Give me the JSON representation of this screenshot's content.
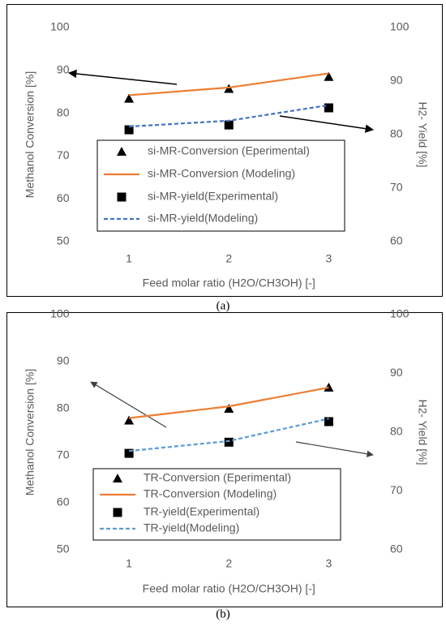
{
  "chart_data": [
    {
      "type": "line",
      "caption": "(a)",
      "x_label": "Feed molar ratio (H2O/CH3OH) [-]",
      "y_label": "Methanol Conversion [%]",
      "y2_label": "H2- Yield [%]",
      "x": [
        1,
        2,
        3
      ],
      "xlim": [
        0.5,
        3.5
      ],
      "xticks": [
        1,
        2,
        3
      ],
      "ylim": [
        50,
        100
      ],
      "yticks": [
        50,
        60,
        70,
        80,
        90,
        100
      ],
      "y2lim": [
        60,
        100
      ],
      "y2ticks": [
        60,
        70,
        80,
        90,
        100
      ],
      "grid": false,
      "series": [
        {
          "name": "si-MR-Conversion (Eperimental)",
          "color": "#000000",
          "marker": "triangle",
          "line": "none",
          "values": [
            83.4,
            85.7,
            88.5
          ]
        },
        {
          "name": "si-MR-Conversion (Modeling)",
          "color": "#ed7d31",
          "marker": "none",
          "line": "solid",
          "values": [
            84.2,
            86.0,
            89.3
          ]
        },
        {
          "name": "si-MR-yield(Experimental)",
          "color": "#000000",
          "marker": "square",
          "line": "none",
          "axis": "y2",
          "values": [
            80.9,
            81.8,
            85.0
          ]
        },
        {
          "name": "si-MR-yield(Modeling)",
          "color": "#4472c4",
          "marker": "none",
          "line": "dashed",
          "axis": "y2",
          "values": [
            81.5,
            82.6,
            85.5
          ]
        }
      ]
    },
    {
      "type": "line",
      "caption": "(b)",
      "x_label": "Feed molar ratio (H2O/CH3OH) [-]",
      "y_label": "Methanol Conversion [%]",
      "y2_label": "H2- Yield [%]",
      "x": [
        1,
        2,
        3
      ],
      "xlim": [
        0.5,
        3.5
      ],
      "xticks": [
        1,
        2,
        3
      ],
      "ylim": [
        50,
        100
      ],
      "yticks": [
        50,
        60,
        70,
        80,
        90,
        100
      ],
      "y2lim": [
        60,
        100
      ],
      "y2ticks": [
        60,
        70,
        80,
        90,
        100
      ],
      "grid": false,
      "series": [
        {
          "name": "TR-Conversion (Eperimental)",
          "color": "#000000",
          "marker": "triangle",
          "line": "none",
          "values": [
            77.5,
            80.0,
            84.5
          ]
        },
        {
          "name": "TR-Conversion (Modeling)",
          "color": "#ed7d31",
          "marker": "none",
          "line": "solid",
          "values": [
            78.0,
            80.5,
            84.5
          ]
        },
        {
          "name": "TR-yield(Experimental)",
          "color": "#000000",
          "marker": "square",
          "line": "none",
          "axis": "y2",
          "values": [
            76.4,
            78.3,
            81.8
          ]
        },
        {
          "name": "TR-yield(Modeling)",
          "color": "#5b9bd5",
          "marker": "none",
          "line": "dashed",
          "axis": "y2",
          "values": [
            76.8,
            78.5,
            82.3
          ]
        }
      ]
    }
  ]
}
